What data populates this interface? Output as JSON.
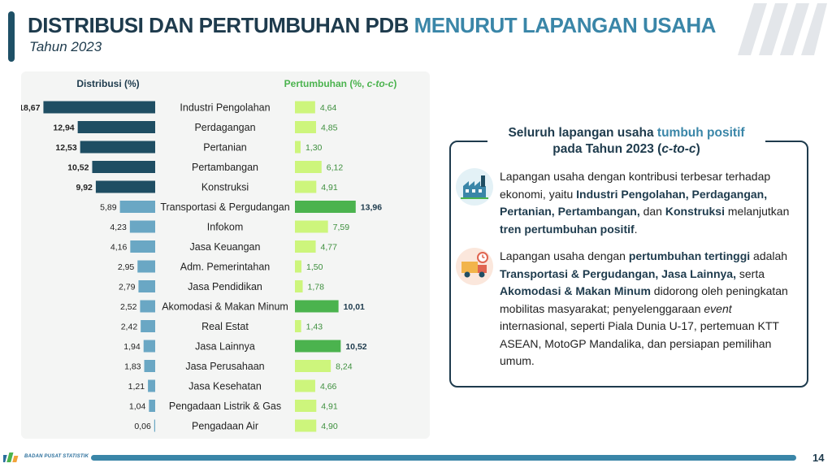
{
  "header": {
    "title_main": "DISTRIBUSI DAN PERTUMBUHAN PDB",
    "title_highlight": "MENURUT LAPANGAN USAHA",
    "subtitle": "Tahun 2023"
  },
  "chart_data": {
    "type": "bar",
    "layout": "diverging-two-panel",
    "left_header": "Distribusi (%)",
    "right_header_text": "Pertumbuhan (%, ",
    "right_header_italic": "c-to-c",
    "right_header_close": ")",
    "categories": [
      "Industri Pengolahan",
      "Perdagangan",
      "Pertanian",
      "Pertambangan",
      "Konstruksi",
      "Transportasi & Pergudangan",
      "Infokom",
      "Jasa Keuangan",
      "Adm. Pemerintahan",
      "Jasa Pendidikan",
      "Akomodasi & Makan Minum",
      "Real Estat",
      "Jasa Lainnya",
      "Jasa Perusahaan",
      "Jasa Kesehatan",
      "Pengadaan Listrik & Gas",
      "Pengadaan Air"
    ],
    "series": [
      {
        "values": [
          18.67,
          12.94,
          12.53,
          10.52,
          9.92,
          5.89,
          4.23,
          4.16,
          2.95,
          2.79,
          2.52,
          2.42,
          1.94,
          1.83,
          1.21,
          1.04,
          0.06
        ],
        "labels": [
          "18,67",
          "12,94",
          "12,53",
          "10,52",
          "9,92",
          "5,89",
          "4,23",
          "4,16",
          "2,95",
          "2,79",
          "2,52",
          "2,42",
          "1,94",
          "1,83",
          "1,21",
          "1,04",
          "0,06"
        ]
      },
      {
        "values": [
          4.64,
          4.85,
          1.3,
          6.12,
          4.91,
          13.96,
          7.59,
          4.77,
          1.5,
          1.78,
          10.01,
          1.43,
          10.52,
          8.24,
          4.66,
          4.91,
          4.9
        ],
        "labels": [
          "4,64",
          "4,85",
          "1,30",
          "6,12",
          "4,91",
          "13,96",
          "7,59",
          "4,77",
          "1,50",
          "1,78",
          "10,01",
          "1,43",
          "10,52",
          "8,24",
          "4,66",
          "4,91",
          "4,90"
        ]
      }
    ],
    "left_highlight_top": 5,
    "right_highlight_indices": [
      5,
      10,
      12
    ],
    "colors": {
      "left_dark": "#1f4e63",
      "left_light": "#6aa7c4",
      "right_light": "#cdf57c",
      "right_dark": "#4bb34e",
      "panel": "#f4f5f4"
    },
    "left_max": 19,
    "right_max": 14
  },
  "info": {
    "heading_part1": "Seluruh lapangan usaha ",
    "heading_highlight": "tumbuh positif",
    "heading_line2_text": "pada Tahun 2023 (",
    "heading_line2_italic": "c-to-c",
    "heading_line2_close": ")",
    "p1": {
      "t1": "Lapangan usaha dengan kontribusi terbesar terhadap ekonomi, yaitu ",
      "b1": "Industri Pengolahan, Perdagangan, Pertanian, Pertambangan,",
      "t2": " dan ",
      "b2": "Konstruksi",
      "t3": " melanjutkan ",
      "b3": "tren pertumbuhan positif",
      "t4": "."
    },
    "p2": {
      "t1": "Lapangan usaha dengan ",
      "b1": "pertumbuhan tertinggi",
      "t2": " adalah ",
      "b2": "Transportasi & Pergudangan, Jasa Lainnya,",
      "t3": " serta ",
      "b3": "Akomodasi & Makan Minum",
      "t4": " didorong oleh peningkatan mobilitas masyarakat; penyelenggaraan ",
      "i1": "event",
      "t5": " internasional, seperti Piala Dunia U-17, pertemuan KTT ASEAN, MotoGP Mandalika, dan persiapan pemilihan umum."
    },
    "icon1": "industry-icon",
    "icon2": "logistics-truck-icon"
  },
  "footer": {
    "org": "BADAN PUSAT STATISTIK",
    "page": "14"
  }
}
